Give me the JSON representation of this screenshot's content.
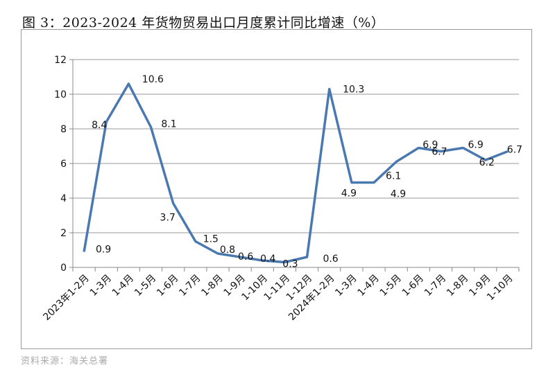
{
  "chart_data": {
    "type": "line",
    "title": "图 3：2023-2024 年货物贸易出口月度累计同比增速（%）",
    "source": "资料来源：海关总署",
    "categories": [
      "2023年1-2月",
      "1-3月",
      "1-4月",
      "1-5月",
      "1-6月",
      "1-7月",
      "1-8月",
      "1-9月",
      "1-10月",
      "1-11月",
      "1-12月",
      "2024年1-2月",
      "1-3月",
      "1-4月",
      "1-5月",
      "1-6月",
      "1-7月",
      "1-8月",
      "1-9月",
      "1-10月"
    ],
    "values": [
      0.9,
      8.4,
      10.6,
      8.1,
      3.7,
      1.5,
      0.8,
      0.6,
      0.4,
      0.3,
      0.6,
      10.3,
      4.9,
      4.9,
      6.1,
      6.9,
      6.7,
      6.9,
      6.2,
      6.7
    ],
    "data_labels": [
      "0.9",
      "8.4",
      "10.6",
      "8.1",
      "3.7",
      "1.5",
      "0.8",
      "0.6",
      "0.4",
      "0.3",
      "0.6",
      "10.3",
      "4.9",
      "4.9",
      "6.1",
      "6.9",
      "6.7",
      "6.9",
      "6.2",
      "6.7"
    ],
    "yticks": [
      "0",
      "2",
      "4",
      "6",
      "8",
      "10",
      "12"
    ],
    "ylim": [
      0,
      12
    ],
    "xlabel": "",
    "ylabel": "",
    "grid": true,
    "line_color": "#4a78b0"
  }
}
